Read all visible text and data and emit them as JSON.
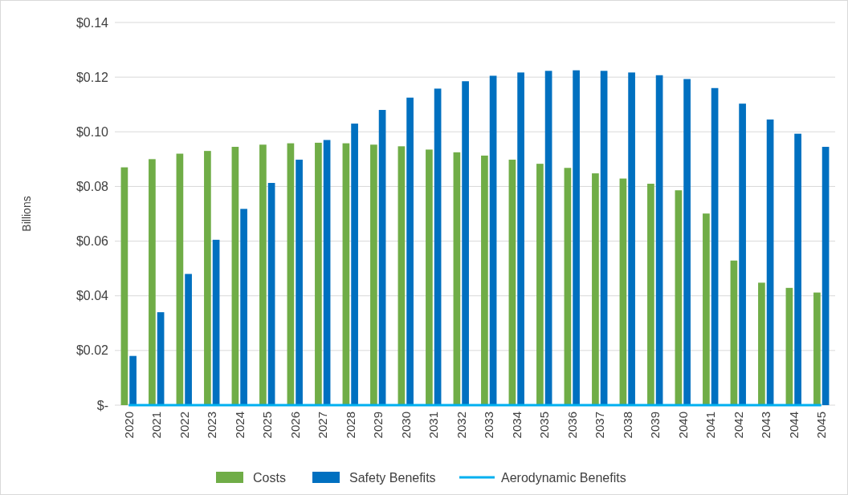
{
  "chart_data": {
    "type": "bar",
    "ylabel": "Billions",
    "categories": [
      "2020",
      "2021",
      "2022",
      "2023",
      "2024",
      "2025",
      "2026",
      "2027",
      "2028",
      "2029",
      "2030",
      "2031",
      "2032",
      "2033",
      "2034",
      "2035",
      "2036",
      "2037",
      "2038",
      "2039",
      "2040",
      "2041",
      "2042",
      "2043",
      "2044",
      "2045"
    ],
    "series": [
      {
        "name": "Costs",
        "color": "#70ad47",
        "values": [
          0.087,
          0.09,
          0.092,
          0.093,
          0.0945,
          0.0953,
          0.0958,
          0.096,
          0.0958,
          0.0953,
          0.0947,
          0.0935,
          0.0925,
          0.0913,
          0.0898,
          0.0883,
          0.0868,
          0.0848,
          0.0829,
          0.081,
          0.0786,
          0.0701,
          0.0529,
          0.0448,
          0.0429,
          0.0412
        ]
      },
      {
        "name": "Safety Benefits",
        "color": "#0070c0",
        "values": [
          0.018,
          0.034,
          0.048,
          0.0605,
          0.0718,
          0.0813,
          0.0898,
          0.097,
          0.103,
          0.108,
          0.1125,
          0.1158,
          0.1185,
          0.1205,
          0.1217,
          0.1223,
          0.1225,
          0.1223,
          0.1217,
          0.1207,
          0.1193,
          0.116,
          0.1103,
          0.1045,
          0.0993,
          0.0945
        ]
      },
      {
        "name": "Aerodynamic Benefits",
        "type": "line",
        "color": "#00b0f0",
        "values": [
          0,
          0,
          0,
          0,
          0,
          0,
          0,
          0,
          0,
          0,
          0,
          0,
          0,
          0,
          0,
          0,
          0,
          0,
          0,
          0,
          0,
          0,
          0,
          0,
          0,
          0
        ]
      }
    ],
    "ylim": [
      0,
      0.14
    ],
    "yticks": [
      {
        "value": 0,
        "label": "$-"
      },
      {
        "value": 0.02,
        "label": "$0.02"
      },
      {
        "value": 0.04,
        "label": "$0.04"
      },
      {
        "value": 0.06,
        "label": "$0.06"
      },
      {
        "value": 0.08,
        "label": "$0.08"
      },
      {
        "value": 0.1,
        "label": "$0.10"
      },
      {
        "value": 0.12,
        "label": "$0.12"
      },
      {
        "value": 0.14,
        "label": "$0.14"
      }
    ],
    "grid": "y",
    "legend": "bottom"
  }
}
